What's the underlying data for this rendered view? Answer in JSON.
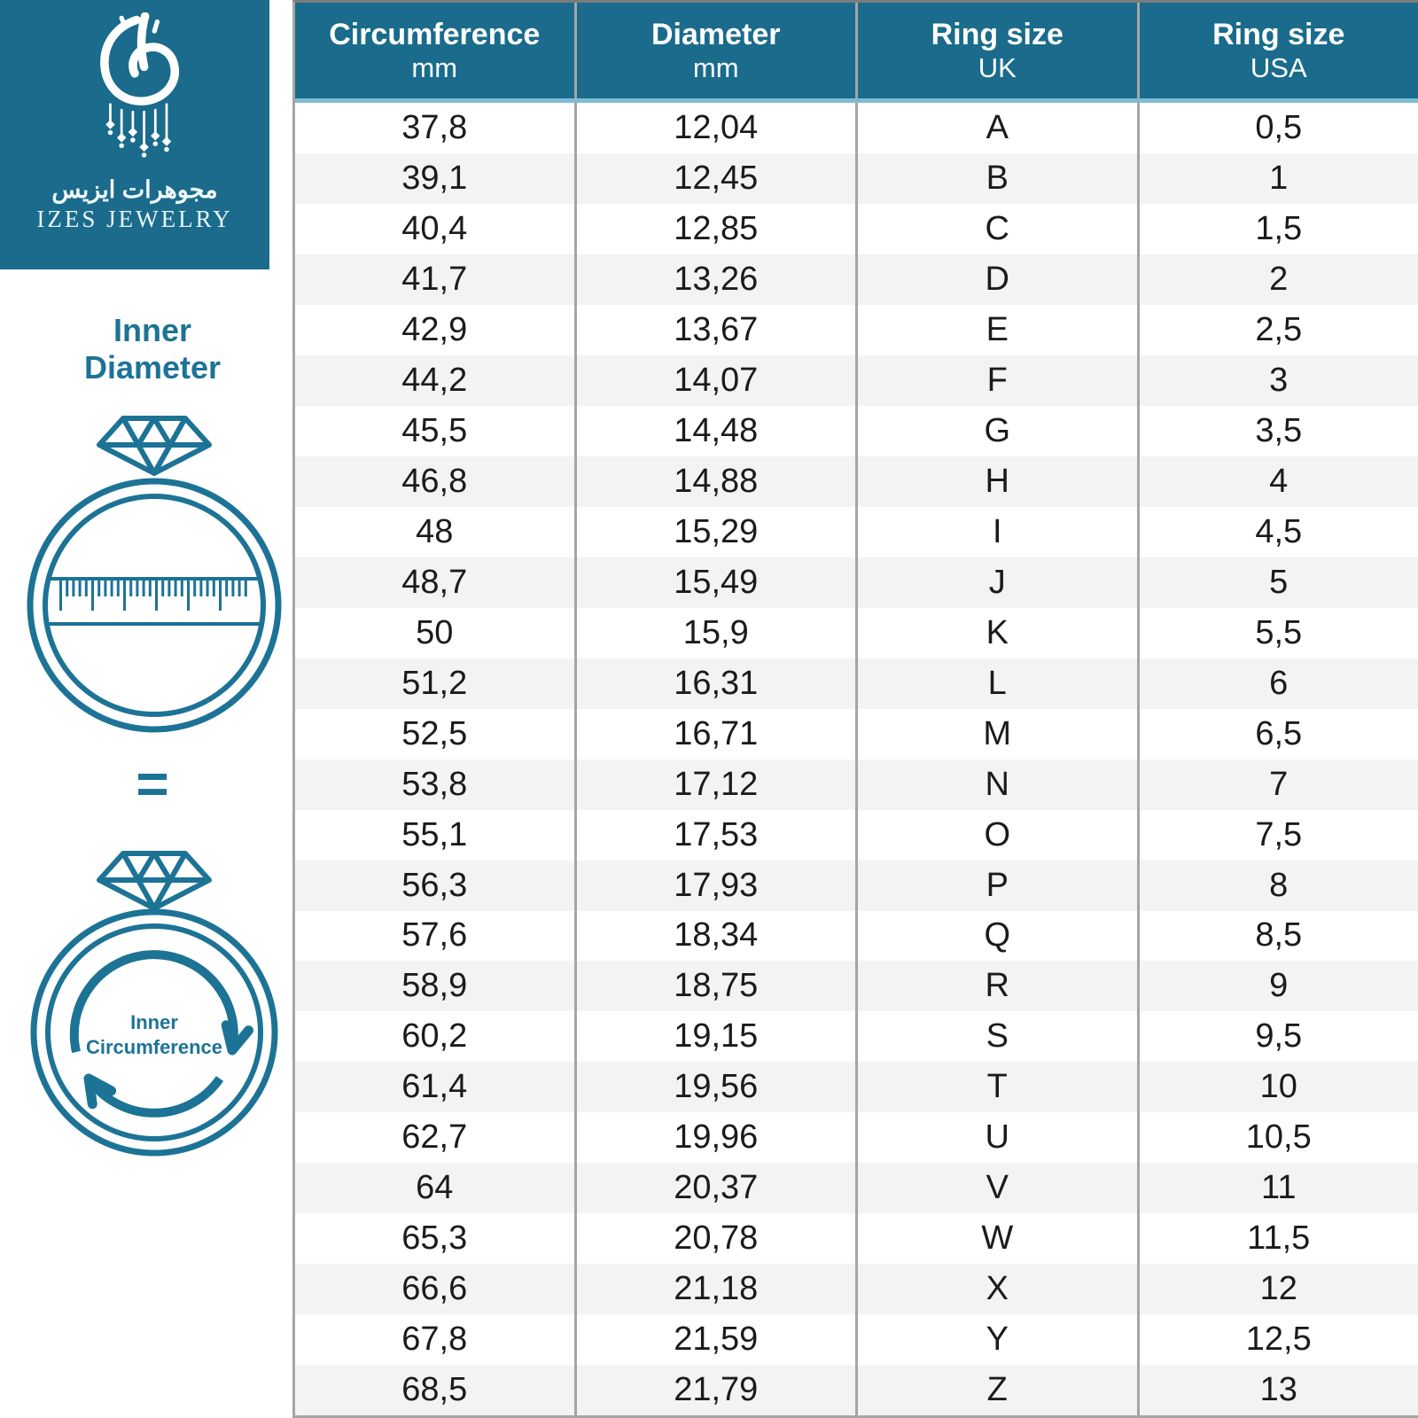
{
  "brand": {
    "arabic_name": "مجوهرات ايزيس",
    "latin_name": "IZES JEWELRY"
  },
  "left_panel": {
    "inner_diameter_label": "Inner\nDiameter",
    "equals_sign": "=",
    "inner_circumference_label": {
      "line1": "Inner",
      "line2": "Circumference"
    }
  },
  "colors": {
    "brand_teal": "#1a6b8c",
    "illustration_teal": "#1d7396",
    "row_stripe": "#f3f3f3",
    "divider_gray": "#a5a5a5",
    "header_underline": "#7fbcd3",
    "header_text": "#ffffff"
  },
  "table": {
    "columns": [
      {
        "title": "Circumference",
        "unit": "mm"
      },
      {
        "title": "Diameter",
        "unit": "mm"
      },
      {
        "title": "Ring size",
        "unit": "UK"
      },
      {
        "title": "Ring size",
        "unit": "USA"
      }
    ]
  },
  "chart_data": {
    "type": "table",
    "columns": [
      "Circumference mm",
      "Diameter mm",
      "Ring size UK",
      "Ring size USA"
    ],
    "rows": [
      [
        "37,8",
        "12,04",
        "A",
        "0,5"
      ],
      [
        "39,1",
        "12,45",
        "B",
        "1"
      ],
      [
        "40,4",
        "12,85",
        "C",
        "1,5"
      ],
      [
        "41,7",
        "13,26",
        "D",
        "2"
      ],
      [
        "42,9",
        "13,67",
        "E",
        "2,5"
      ],
      [
        "44,2",
        "14,07",
        "F",
        "3"
      ],
      [
        "45,5",
        "14,48",
        "G",
        "3,5"
      ],
      [
        "46,8",
        "14,88",
        "H",
        "4"
      ],
      [
        "48",
        "15,29",
        "I",
        "4,5"
      ],
      [
        "48,7",
        "15,49",
        "J",
        "5"
      ],
      [
        "50",
        "15,9",
        "K",
        "5,5"
      ],
      [
        "51,2",
        "16,31",
        "L",
        "6"
      ],
      [
        "52,5",
        "16,71",
        "M",
        "6,5"
      ],
      [
        "53,8",
        "17,12",
        "N",
        "7"
      ],
      [
        "55,1",
        "17,53",
        "O",
        "7,5"
      ],
      [
        "56,3",
        "17,93",
        "P",
        "8"
      ],
      [
        "57,6",
        "18,34",
        "Q",
        "8,5"
      ],
      [
        "58,9",
        "18,75",
        "R",
        "9"
      ],
      [
        "60,2",
        "19,15",
        "S",
        "9,5"
      ],
      [
        "61,4",
        "19,56",
        "T",
        "10"
      ],
      [
        "62,7",
        "19,96",
        "U",
        "10,5"
      ],
      [
        "64",
        "20,37",
        "V",
        "11"
      ],
      [
        "65,3",
        "20,78",
        "W",
        "11,5"
      ],
      [
        "66,6",
        "21,18",
        "X",
        "12"
      ],
      [
        "67,8",
        "21,59",
        "Y",
        "12,5"
      ],
      [
        "68,5",
        "21,79",
        "Z",
        "13"
      ]
    ]
  }
}
